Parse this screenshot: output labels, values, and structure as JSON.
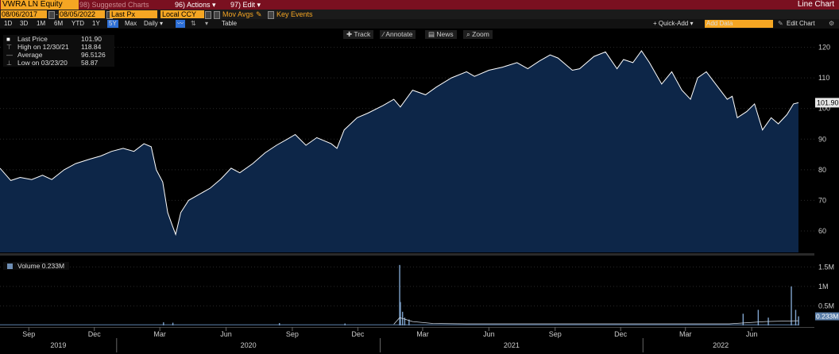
{
  "toolbar": {
    "ticker": "VWRA LN Equity",
    "suggested": "98) Suggested Charts",
    "actions": "96) Actions ▾",
    "edit": "97) Edit ▾",
    "title": "Line Chart",
    "start_date": "08/06/2017",
    "end_date": "08/05/2022",
    "field": "Last Px",
    "currency": "Local CCY",
    "mov_avgs": "Mov Avgs",
    "key_events": "Key Events",
    "ranges": [
      "1D",
      "3D",
      "1M",
      "6M",
      "YTD",
      "1Y",
      "5Y",
      "Max"
    ],
    "active_range": "5Y",
    "freq": "Daily ▾",
    "table": "Table",
    "quick_add": "+ Quick-Add ▾",
    "add_data": "Add Data",
    "edit_chart": "Edit Chart",
    "track": "Track",
    "annotate": "Annotate",
    "news": "News",
    "zoom": "Zoom"
  },
  "legend": {
    "last_label": "Last Price",
    "last_value": "101.90",
    "high_label": "High on 12/30/21",
    "high_value": "118.84",
    "avg_label": "Average",
    "avg_value": "96.5126",
    "low_label": "Low on 03/23/20",
    "low_value": "58.87"
  },
  "volume_legend": "Volume 0.233M",
  "last_tag": "101.90",
  "vol_tag": "0.233M",
  "colors": {
    "line": "#ffffff",
    "fill": "#0d2648",
    "accent": "#f5a623",
    "bar": "#7a1020"
  },
  "chart_data": [
    {
      "type": "area",
      "ylim": [
        53,
        123
      ],
      "yticks": [
        60,
        70,
        80,
        90,
        100,
        110,
        120
      ],
      "x_labels": [
        {
          "label": "Sep",
          "year": 2019,
          "month": 9
        },
        {
          "label": "Dec",
          "year": 2019,
          "month": 12
        },
        {
          "label": "Mar",
          "year": 2020,
          "month": 3
        },
        {
          "label": "Jun",
          "year": 2020,
          "month": 6
        },
        {
          "label": "Sep",
          "year": 2020,
          "month": 9
        },
        {
          "label": "Dec",
          "year": 2020,
          "month": 12
        },
        {
          "label": "Mar",
          "year": 2021,
          "month": 3
        },
        {
          "label": "Jun",
          "year": 2021,
          "month": 6
        },
        {
          "label": "Sep",
          "year": 2021,
          "month": 9
        },
        {
          "label": "Dec",
          "year": 2021,
          "month": 12
        },
        {
          "label": "Mar",
          "year": 2022,
          "month": 3
        },
        {
          "label": "Jun",
          "year": 2022,
          "month": 6
        }
      ],
      "year_labels": [
        "2019",
        "2020",
        "2021",
        "2022"
      ],
      "series": [
        {
          "values": [
            [
              "2019-07-23",
              80.5
            ],
            [
              "2019-08-07",
              76.5
            ],
            [
              "2019-08-20",
              77.5
            ],
            [
              "2019-09-05",
              76.8
            ],
            [
              "2019-09-20",
              78.2
            ],
            [
              "2019-10-03",
              76.8
            ],
            [
              "2019-10-20",
              80.0
            ],
            [
              "2019-11-05",
              82.0
            ],
            [
              "2019-11-25",
              83.5
            ],
            [
              "2019-12-10",
              84.5
            ],
            [
              "2019-12-25",
              86.0
            ],
            [
              "2020-01-10",
              87.0
            ],
            [
              "2020-01-25",
              86.0
            ],
            [
              "2020-02-08",
              88.5
            ],
            [
              "2020-02-18",
              87.5
            ],
            [
              "2020-02-25",
              80.0
            ],
            [
              "2020-03-05",
              76.0
            ],
            [
              "2020-03-12",
              66.0
            ],
            [
              "2020-03-18",
              62.0
            ],
            [
              "2020-03-23",
              58.87
            ],
            [
              "2020-03-30",
              66.0
            ],
            [
              "2020-04-10",
              70.0
            ],
            [
              "2020-04-25",
              72.0
            ],
            [
              "2020-05-10",
              74.0
            ],
            [
              "2020-05-25",
              77.0
            ],
            [
              "2020-06-08",
              80.5
            ],
            [
              "2020-06-20",
              79.0
            ],
            [
              "2020-07-08",
              82.0
            ],
            [
              "2020-07-25",
              85.5
            ],
            [
              "2020-08-10",
              88.0
            ],
            [
              "2020-08-25",
              90.0
            ],
            [
              "2020-09-05",
              91.5
            ],
            [
              "2020-09-20",
              88.0
            ],
            [
              "2020-10-05",
              90.5
            ],
            [
              "2020-10-25",
              88.5
            ],
            [
              "2020-11-02",
              87.0
            ],
            [
              "2020-11-12",
              93.0
            ],
            [
              "2020-11-30",
              97.0
            ],
            [
              "2020-12-15",
              98.5
            ],
            [
              "2021-01-05",
              101.0
            ],
            [
              "2021-01-20",
              103.0
            ],
            [
              "2021-01-29",
              100.5
            ],
            [
              "2021-02-15",
              106.0
            ],
            [
              "2021-03-05",
              104.5
            ],
            [
              "2021-03-20",
              107.0
            ],
            [
              "2021-04-10",
              110.0
            ],
            [
              "2021-05-01",
              112.0
            ],
            [
              "2021-05-12",
              110.5
            ],
            [
              "2021-06-01",
              112.5
            ],
            [
              "2021-06-20",
              113.5
            ],
            [
              "2021-07-10",
              115.0
            ],
            [
              "2021-07-25",
              113.0
            ],
            [
              "2021-08-10",
              115.5
            ],
            [
              "2021-08-25",
              117.5
            ],
            [
              "2021-09-05",
              116.5
            ],
            [
              "2021-09-25",
              112.5
            ],
            [
              "2021-10-05",
              113.0
            ],
            [
              "2021-10-25",
              117.0
            ],
            [
              "2021-11-10",
              118.5
            ],
            [
              "2021-11-26",
              113.0
            ],
            [
              "2021-12-05",
              116.0
            ],
            [
              "2021-12-18",
              115.0
            ],
            [
              "2021-12-30",
              118.84
            ],
            [
              "2022-01-10",
              115.0
            ],
            [
              "2022-01-27",
              108.0
            ],
            [
              "2022-02-10",
              112.0
            ],
            [
              "2022-02-24",
              106.0
            ],
            [
              "2022-03-08",
              103.0
            ],
            [
              "2022-03-18",
              110.0
            ],
            [
              "2022-03-30",
              112.0
            ],
            [
              "2022-04-12",
              108.0
            ],
            [
              "2022-04-28",
              103.0
            ],
            [
              "2022-05-05",
              104.0
            ],
            [
              "2022-05-12",
              97.0
            ],
            [
              "2022-05-25",
              99.0
            ],
            [
              "2022-06-05",
              101.5
            ],
            [
              "2022-06-16",
              93.0
            ],
            [
              "2022-06-28",
              97.0
            ],
            [
              "2022-07-08",
              95.0
            ],
            [
              "2022-07-20",
              98.0
            ],
            [
              "2022-07-29",
              101.5
            ],
            [
              "2022-08-05",
              101.9
            ]
          ]
        }
      ]
    },
    {
      "type": "bar",
      "title": "Volume",
      "ylim": [
        0,
        1.75
      ],
      "yticks": [
        {
          "value": 1.5,
          "label": "1.5M"
        },
        {
          "value": 1.0,
          "label": "1M"
        },
        {
          "value": 0.5,
          "label": "0.5M"
        }
      ],
      "base_volume": 0.03,
      "spikes": [
        [
          "2020-03-06",
          0.08
        ],
        [
          "2020-03-19",
          0.07
        ],
        [
          "2020-08-14",
          0.06
        ],
        [
          "2020-11-13",
          0.05
        ],
        [
          "2021-01-28",
          1.55
        ],
        [
          "2021-01-29",
          0.6
        ],
        [
          "2021-02-01",
          0.35
        ],
        [
          "2021-02-04",
          0.2
        ],
        [
          "2021-02-10",
          0.15
        ],
        [
          "2022-05-20",
          0.3
        ],
        [
          "2022-06-10",
          0.4
        ],
        [
          "2022-06-24",
          0.2
        ],
        [
          "2022-07-26",
          1.0
        ],
        [
          "2022-08-01",
          0.4
        ],
        [
          "2022-08-05",
          0.233
        ]
      ],
      "average_line": [
        [
          "2021-01-20",
          0.03
        ],
        [
          "2021-01-28",
          0.2
        ],
        [
          "2021-02-15",
          0.1
        ],
        [
          "2021-03-15",
          0.05
        ],
        [
          "2021-05-01",
          0.04
        ],
        [
          "2022-05-01",
          0.04
        ],
        [
          "2022-06-20",
          0.1
        ],
        [
          "2022-08-05",
          0.12
        ]
      ]
    }
  ]
}
